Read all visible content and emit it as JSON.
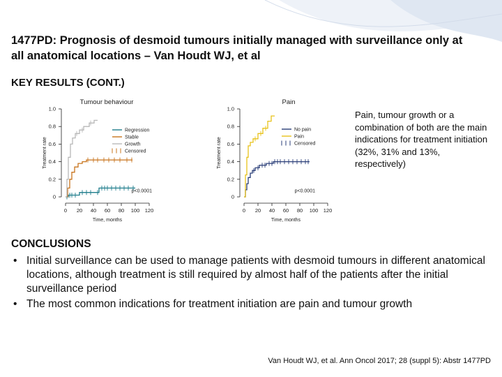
{
  "slide": {
    "title": "1477PD: Prognosis of desmoid tumours initially managed with surveillance only at all anatomical locations – Van Houdt WJ, et al",
    "section_heading": "KEY RESULTS (CONT.)",
    "side_note": "Pain, tumour growth or a combination of both are the main indications for treatment initiation (32%, 31% and 13%, respectively)",
    "conclusions_heading": "CONCLUSIONS",
    "conclusions": [
      "Initial surveillance can be used to manage patients with desmoid tumours in different anatomical locations, although treatment is still required by almost half of the patients after the initial surveillance period",
      "The most common indications for treatment initiation are pain and tumour growth"
    ],
    "bullet": "•",
    "reference": "Van Houdt WJ, et al. Ann Oncol 2017; 28 (suppl 5): Abstr 1477PD",
    "colors": {
      "regression": "#1f7d8c",
      "stable": "#c8741c",
      "growth": "#b8b8b8",
      "pain": "#e8c21a",
      "no_pain": "#2a3e78",
      "decor": "#dfe7f2"
    }
  },
  "chart_data": [
    {
      "type": "line",
      "title": "Tumour behaviour",
      "ylabel": "Treatment rate",
      "xlabel": "Time, months",
      "x_ticks": [
        "0",
        "20",
        "40",
        "60",
        "80",
        "100",
        "120"
      ],
      "y_ticks": [
        "0",
        "0.2",
        "0.4",
        "0.6",
        "0.8",
        "1.0"
      ],
      "xlim": [
        0,
        120
      ],
      "ylim": [
        0,
        1
      ],
      "p_value": "p<0.0001",
      "legend_position": "right",
      "legend": [
        {
          "label": "Regression",
          "color": "#1f7d8c",
          "style": "line"
        },
        {
          "label": "Stable",
          "color": "#c8741c",
          "style": "line"
        },
        {
          "label": "Growth",
          "color": "#b8b8b8",
          "style": "line"
        },
        {
          "label": "Censored",
          "color": "#c8741c",
          "style": "ticks"
        }
      ],
      "series": [
        {
          "name": "Regression",
          "color": "#1f7d8c",
          "steps": [
            [
              0,
              0
            ],
            [
              4,
              0
            ],
            [
              4,
              0.02
            ],
            [
              20,
              0.02
            ],
            [
              20,
              0.05
            ],
            [
              48,
              0.05
            ],
            [
              48,
              0.1
            ],
            [
              100,
              0.1
            ]
          ],
          "censored": [
            2,
            6,
            9,
            14,
            24,
            30,
            36,
            46,
            52,
            56,
            60,
            66,
            72,
            78,
            84,
            90,
            97
          ]
        },
        {
          "name": "Stable",
          "color": "#c8741c",
          "steps": [
            [
              0,
              0
            ],
            [
              3,
              0
            ],
            [
              3,
              0.1
            ],
            [
              6,
              0.1
            ],
            [
              6,
              0.2
            ],
            [
              9,
              0.2
            ],
            [
              9,
              0.28
            ],
            [
              13,
              0.28
            ],
            [
              13,
              0.34
            ],
            [
              18,
              0.34
            ],
            [
              18,
              0.38
            ],
            [
              24,
              0.38
            ],
            [
              24,
              0.4
            ],
            [
              30,
              0.4
            ],
            [
              30,
              0.42
            ],
            [
              96,
              0.42
            ]
          ],
          "censored": [
            32,
            40,
            46,
            55,
            62,
            70,
            78,
            88,
            95
          ]
        },
        {
          "name": "Growth",
          "color": "#b8b8b8",
          "steps": [
            [
              0,
              0
            ],
            [
              2,
              0
            ],
            [
              2,
              0.2
            ],
            [
              4,
              0.2
            ],
            [
              4,
              0.45
            ],
            [
              7,
              0.45
            ],
            [
              7,
              0.6
            ],
            [
              10,
              0.6
            ],
            [
              10,
              0.67
            ],
            [
              14,
              0.67
            ],
            [
              14,
              0.72
            ],
            [
              20,
              0.72
            ],
            [
              20,
              0.76
            ],
            [
              26,
              0.76
            ],
            [
              26,
              0.8
            ],
            [
              34,
              0.8
            ],
            [
              34,
              0.84
            ],
            [
              41,
              0.84
            ],
            [
              41,
              0.87
            ],
            [
              46,
              0.87
            ]
          ],
          "censored": [
            16,
            24,
            36
          ]
        }
      ]
    },
    {
      "type": "line",
      "title": "Pain",
      "ylabel": "Treatment rate",
      "xlabel": "Time, months",
      "x_ticks": [
        "0",
        "20",
        "40",
        "60",
        "80",
        "100",
        "120"
      ],
      "y_ticks": [
        "0",
        "0.2",
        "0.4",
        "0.6",
        "0.8",
        "1.0"
      ],
      "xlim": [
        0,
        120
      ],
      "ylim": [
        0,
        1
      ],
      "p_value": "p<0.0001",
      "legend_position": "right",
      "legend": [
        {
          "label": "No pain",
          "color": "#2a3e78",
          "style": "line"
        },
        {
          "label": "Pain",
          "color": "#e8c21a",
          "style": "line"
        },
        {
          "label": "Censored",
          "color": "#2a3e78",
          "style": "ticks"
        }
      ],
      "series": [
        {
          "name": "No pain",
          "color": "#2a3e78",
          "steps": [
            [
              0,
              0
            ],
            [
              2,
              0
            ],
            [
              2,
              0.08
            ],
            [
              4,
              0.08
            ],
            [
              4,
              0.15
            ],
            [
              6,
              0.15
            ],
            [
              6,
              0.22
            ],
            [
              9,
              0.22
            ],
            [
              9,
              0.27
            ],
            [
              12,
              0.27
            ],
            [
              12,
              0.3
            ],
            [
              16,
              0.3
            ],
            [
              16,
              0.33
            ],
            [
              22,
              0.33
            ],
            [
              22,
              0.36
            ],
            [
              32,
              0.36
            ],
            [
              32,
              0.38
            ],
            [
              42,
              0.38
            ],
            [
              42,
              0.4
            ],
            [
              94,
              0.4
            ]
          ],
          "censored": [
            14,
            20,
            26,
            30,
            36,
            40,
            44,
            48,
            52,
            58,
            64,
            70,
            76,
            82,
            88,
            92
          ]
        },
        {
          "name": "Pain",
          "color": "#e8c21a",
          "steps": [
            [
              0,
              0
            ],
            [
              2,
              0
            ],
            [
              2,
              0.25
            ],
            [
              4,
              0.25
            ],
            [
              4,
              0.45
            ],
            [
              6,
              0.45
            ],
            [
              6,
              0.58
            ],
            [
              9,
              0.58
            ],
            [
              9,
              0.62
            ],
            [
              13,
              0.62
            ],
            [
              13,
              0.66
            ],
            [
              20,
              0.66
            ],
            [
              20,
              0.72
            ],
            [
              27,
              0.72
            ],
            [
              27,
              0.78
            ],
            [
              34,
              0.78
            ],
            [
              34,
              0.86
            ],
            [
              39,
              0.86
            ],
            [
              39,
              0.92
            ],
            [
              44,
              0.92
            ]
          ],
          "censored": [
            16,
            24,
            31
          ]
        }
      ]
    }
  ]
}
